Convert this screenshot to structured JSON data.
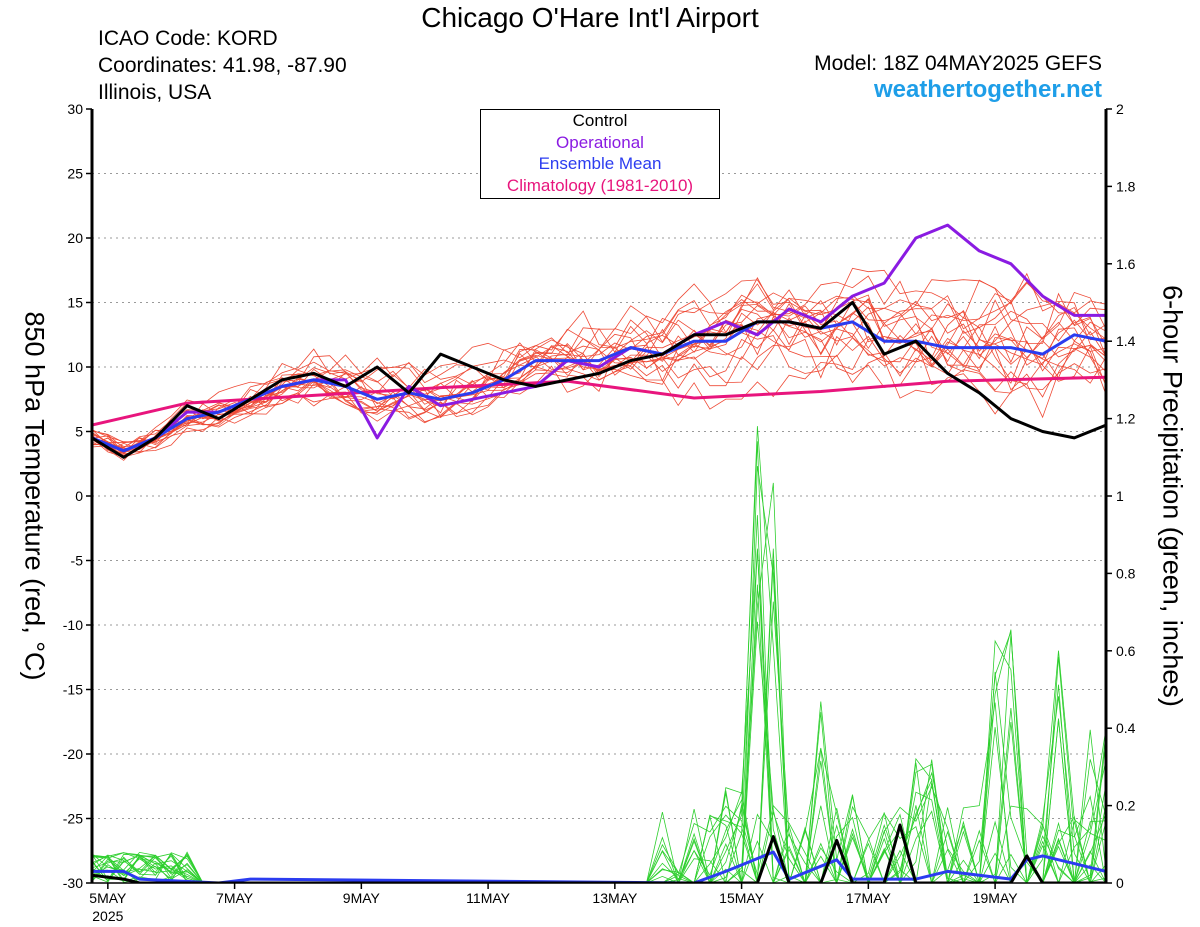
{
  "header": {
    "title": "Chicago O'Hare Int'l Airport",
    "icao": "ICAO Code: KORD",
    "coordinates": "Coordinates: 41.98, -87.90",
    "region": "Illinois, USA",
    "model": "Model: 18Z 04MAY2025 GEFS",
    "site": "weathertogether.net"
  },
  "legend": {
    "items": [
      {
        "label": "Control",
        "color": "#000000"
      },
      {
        "label": "Operational",
        "color": "#8a1be2"
      },
      {
        "label": "Ensemble Mean",
        "color": "#2b3cf0"
      },
      {
        "label": "Climatology (1981-2010)",
        "color": "#e8157d"
      }
    ]
  },
  "chart_data": {
    "type": "line",
    "ylabel_left": "850 hPa Temperature (red, °C)",
    "ylabel_right": "6-hour Precipitation (green, inches)",
    "ylim_left": [
      -30,
      30
    ],
    "ylim_right": [
      0,
      2
    ],
    "yticks_left": [
      "30",
      "25",
      "20",
      "15",
      "10",
      "5",
      "0",
      "-5",
      "-10",
      "-15",
      "-20",
      "-25",
      "-30"
    ],
    "yticks_right": [
      "2",
      "1.8",
      "1.6",
      "1.4",
      "1.2",
      "1",
      "0.8",
      "0.6",
      "0.4",
      "0.2",
      "0"
    ],
    "xticks": [
      "5MAY",
      "7MAY",
      "9MAY",
      "11MAY",
      "13MAY",
      "15MAY",
      "17MAY",
      "19MAY"
    ],
    "xtick_year": "2025",
    "x_start": "2025-05-04T18:00Z",
    "x_end": "2025-05-20T18:00Z",
    "grid": "horizontal dotted",
    "colors": {
      "member": "#ee4a36",
      "precip_member": "#2ecf2e",
      "control": "#000000",
      "operational": "#8a1be2",
      "mean": "#2b3cf0",
      "climatology": "#e8157d"
    },
    "series": [
      {
        "name": "Operational",
        "axis": "left",
        "x": [
          "2025-05-04T18:00Z",
          "2025-05-05T06:00Z",
          "2025-05-05T18:00Z",
          "2025-05-06T06:00Z",
          "2025-05-06T18:00Z",
          "2025-05-07T06:00Z",
          "2025-05-07T18:00Z",
          "2025-05-08T06:00Z",
          "2025-05-08T18:00Z",
          "2025-05-09T06:00Z",
          "2025-05-09T18:00Z",
          "2025-05-10T06:00Z",
          "2025-05-10T18:00Z",
          "2025-05-11T06:00Z",
          "2025-05-11T18:00Z",
          "2025-05-12T06:00Z",
          "2025-05-12T18:00Z",
          "2025-05-13T06:00Z",
          "2025-05-13T18:00Z",
          "2025-05-14T06:00Z",
          "2025-05-14T18:00Z",
          "2025-05-15T06:00Z",
          "2025-05-15T18:00Z",
          "2025-05-16T06:00Z",
          "2025-05-16T18:00Z",
          "2025-05-17T06:00Z",
          "2025-05-17T18:00Z",
          "2025-05-18T06:00Z",
          "2025-05-18T18:00Z",
          "2025-05-19T06:00Z",
          "2025-05-19T18:00Z",
          "2025-05-20T06:00Z",
          "2025-05-20T18:00Z"
        ],
        "values": [
          4.5,
          3.5,
          4.5,
          6.5,
          6.5,
          7.5,
          8.5,
          9,
          9,
          4.5,
          8.5,
          7,
          7.5,
          8,
          8.5,
          10.5,
          10,
          11.5,
          11,
          12.5,
          13.5,
          12.5,
          14.5,
          13.5,
          15.5,
          16.5,
          20,
          21,
          19,
          18,
          15.5,
          14,
          14
        ]
      },
      {
        "name": "Ensemble Mean",
        "axis": "left",
        "x": [
          "2025-05-04T18:00Z",
          "2025-05-05T06:00Z",
          "2025-05-05T18:00Z",
          "2025-05-06T06:00Z",
          "2025-05-06T18:00Z",
          "2025-05-07T06:00Z",
          "2025-05-07T18:00Z",
          "2025-05-08T06:00Z",
          "2025-05-08T18:00Z",
          "2025-05-09T06:00Z",
          "2025-05-09T18:00Z",
          "2025-05-10T06:00Z",
          "2025-05-10T18:00Z",
          "2025-05-11T06:00Z",
          "2025-05-11T18:00Z",
          "2025-05-12T06:00Z",
          "2025-05-12T18:00Z",
          "2025-05-13T06:00Z",
          "2025-05-13T18:00Z",
          "2025-05-14T06:00Z",
          "2025-05-14T18:00Z",
          "2025-05-15T06:00Z",
          "2025-05-15T18:00Z",
          "2025-05-16T06:00Z",
          "2025-05-16T18:00Z",
          "2025-05-17T06:00Z",
          "2025-05-17T18:00Z",
          "2025-05-18T06:00Z",
          "2025-05-18T18:00Z",
          "2025-05-19T06:00Z",
          "2025-05-19T18:00Z",
          "2025-05-20T06:00Z",
          "2025-05-20T18:00Z"
        ],
        "values": [
          4.5,
          3.5,
          4.5,
          6,
          6.5,
          7.5,
          8.5,
          9,
          8.5,
          7.5,
          8,
          7.5,
          8,
          9,
          10.5,
          10.5,
          10.5,
          11.5,
          11,
          12,
          12,
          13.5,
          13.5,
          13,
          13.5,
          12,
          12,
          11.5,
          11.5,
          11.5,
          11,
          12.5,
          12
        ]
      },
      {
        "name": "Control",
        "axis": "left",
        "x": [
          "2025-05-04T18:00Z",
          "2025-05-05T06:00Z",
          "2025-05-05T18:00Z",
          "2025-05-06T06:00Z",
          "2025-05-06T18:00Z",
          "2025-05-07T06:00Z",
          "2025-05-07T18:00Z",
          "2025-05-08T06:00Z",
          "2025-05-08T18:00Z",
          "2025-05-09T06:00Z",
          "2025-05-09T18:00Z",
          "2025-05-10T06:00Z",
          "2025-05-10T18:00Z",
          "2025-05-11T06:00Z",
          "2025-05-11T18:00Z",
          "2025-05-12T06:00Z",
          "2025-05-12T18:00Z",
          "2025-05-13T06:00Z",
          "2025-05-13T18:00Z",
          "2025-05-14T06:00Z",
          "2025-05-14T18:00Z",
          "2025-05-15T06:00Z",
          "2025-05-15T18:00Z",
          "2025-05-16T06:00Z",
          "2025-05-16T18:00Z",
          "2025-05-17T06:00Z",
          "2025-05-17T18:00Z",
          "2025-05-18T06:00Z",
          "2025-05-18T18:00Z",
          "2025-05-19T06:00Z",
          "2025-05-19T18:00Z",
          "2025-05-20T06:00Z",
          "2025-05-20T18:00Z"
        ],
        "values": [
          4.5,
          3,
          4.5,
          7,
          6,
          7.5,
          9,
          9.5,
          8.5,
          10,
          8,
          11,
          10,
          9,
          8.5,
          9,
          9.5,
          10.5,
          11,
          12.5,
          12.5,
          13.5,
          13.5,
          13,
          15,
          11,
          12,
          9.5,
          8,
          6,
          5,
          4.5,
          5.5
        ]
      },
      {
        "name": "Climatology (1981-2010)",
        "axis": "left",
        "x": [
          "2025-05-04T18:00Z",
          "2025-05-06T06:00Z",
          "2025-05-08T06:00Z",
          "2025-05-10T06:00Z",
          "2025-05-12T06:00Z",
          "2025-05-14T06:00Z",
          "2025-05-16T06:00Z",
          "2025-05-18T06:00Z",
          "2025-05-20T18:00Z"
        ],
        "values": [
          5.5,
          7.2,
          7.8,
          8.4,
          8.9,
          7.6,
          8.1,
          8.9,
          9.2
        ]
      },
      {
        "name": "Control",
        "axis": "right",
        "x": [
          "2025-05-04T18:00Z",
          "2025-05-05T06:00Z",
          "2025-05-05T12:00Z",
          "2025-05-15T06:00Z",
          "2025-05-15T12:00Z",
          "2025-05-15T18:00Z",
          "2025-05-16T06:00Z",
          "2025-05-16T12:00Z",
          "2025-05-16T18:00Z",
          "2025-05-17T06:00Z",
          "2025-05-17T12:00Z",
          "2025-05-17T18:00Z",
          "2025-05-19T06:00Z",
          "2025-05-19T12:00Z",
          "2025-05-19T18:00Z",
          "2025-05-20T18:00Z"
        ],
        "values": [
          0.02,
          0.01,
          0,
          0,
          0.12,
          0,
          0,
          0.11,
          0,
          0,
          0.15,
          0,
          0,
          0.07,
          0,
          0
        ]
      },
      {
        "name": "Ensemble Mean",
        "axis": "right",
        "x": [
          "2025-05-04T18:00Z",
          "2025-05-05T06:00Z",
          "2025-05-05T12:00Z",
          "2025-05-06T18:00Z",
          "2025-05-07T06:00Z",
          "2025-05-14T06:00Z",
          "2025-05-14T18:00Z",
          "2025-05-15T12:00Z",
          "2025-05-15T18:00Z",
          "2025-05-16T12:00Z",
          "2025-05-16T18:00Z",
          "2025-05-17T18:00Z",
          "2025-05-18T06:00Z",
          "2025-05-19T06:00Z",
          "2025-05-19T12:00Z",
          "2025-05-19T18:00Z",
          "2025-05-20T06:00Z",
          "2025-05-20T18:00Z"
        ],
        "values": [
          0.03,
          0.03,
          0.01,
          0,
          0.01,
          0,
          0.03,
          0.08,
          0.01,
          0.06,
          0.01,
          0.01,
          0.03,
          0.01,
          0.06,
          0.07,
          0.05,
          0.03
        ]
      }
    ]
  }
}
